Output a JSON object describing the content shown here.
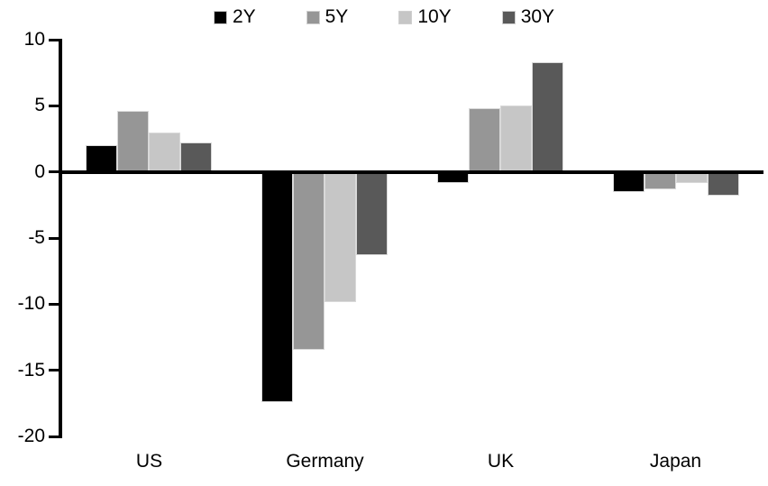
{
  "chart_data": {
    "type": "bar",
    "title": "",
    "xlabel": "",
    "ylabel": "",
    "categories": [
      "US",
      "Germany",
      "UK",
      "Japan"
    ],
    "series": [
      {
        "name": "2Y",
        "color": "#000000",
        "values": [
          2.0,
          -17.4,
          -0.8,
          -1.5
        ]
      },
      {
        "name": "5Y",
        "color": "#969696",
        "values": [
          4.6,
          -13.4,
          4.8,
          -1.3
        ]
      },
      {
        "name": "10Y",
        "color": "#c6c6c6",
        "values": [
          3.0,
          -9.8,
          5.0,
          -0.8
        ]
      },
      {
        "name": "30Y",
        "color": "#595959",
        "values": [
          2.2,
          -6.3,
          8.3,
          -1.8
        ]
      }
    ],
    "ylim": [
      -20,
      10
    ],
    "yticks": [
      10,
      5,
      0,
      -5,
      -10,
      -15,
      -20
    ],
    "grid": false,
    "legend_position": "top",
    "background_color": "#ffffff",
    "text_color": "#000000"
  }
}
